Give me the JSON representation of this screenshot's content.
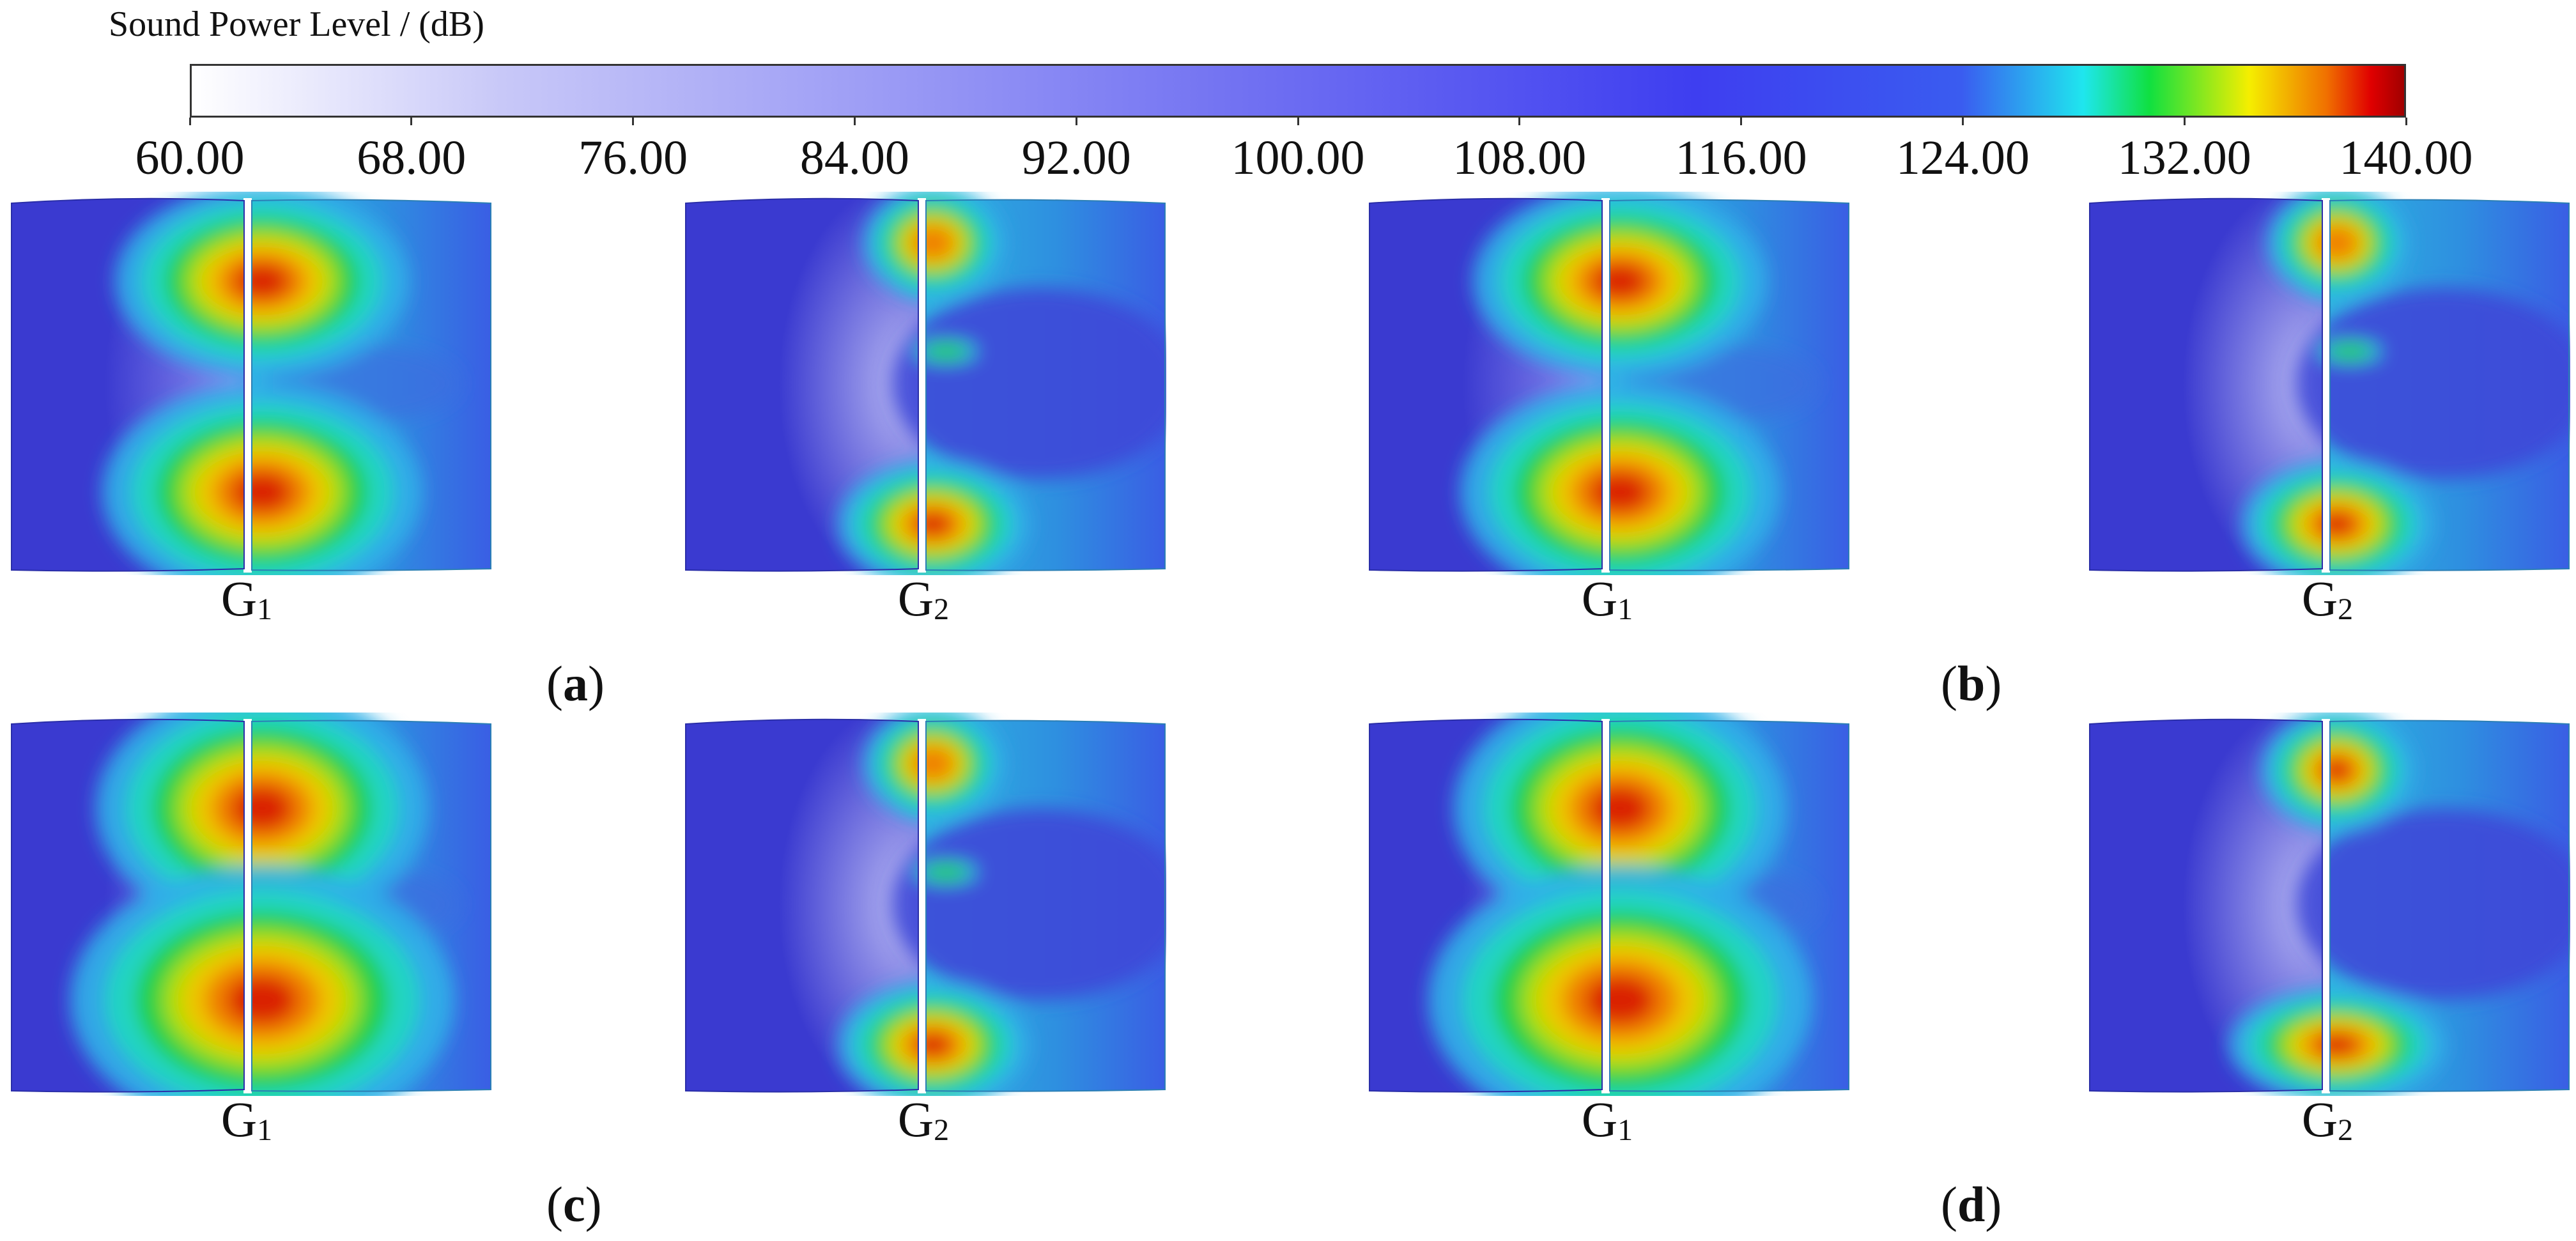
{
  "colorbar": {
    "title": "Sound Power Level / (dB)",
    "ticks": [
      "60.00",
      "68.00",
      "76.00",
      "84.00",
      "92.00",
      "100.00",
      "108.00",
      "116.00",
      "124.00",
      "132.00",
      "140.00"
    ],
    "range": [
      60,
      140
    ],
    "colors": [
      "#ffffff",
      "#c8c8f8",
      "#7070f2",
      "#3e3ef0",
      "#3a5cf0",
      "#1fe6ee",
      "#10e040",
      "#f5ee00",
      "#f07000",
      "#e00000",
      "#a00000"
    ]
  },
  "labels": {
    "g1_main": "G",
    "g1_sub": "1",
    "g2_main": "G",
    "g2_sub": "2"
  },
  "captions": {
    "a_open": "(",
    "a_letter": "a",
    "a_close": ")",
    "b_open": "(",
    "b_letter": "b",
    "b_close": ")",
    "c_open": "(",
    "c_letter": "c",
    "c_close": ")",
    "d_open": "(",
    "d_letter": "d",
    "d_close": ")"
  },
  "theme": {
    "base_field": "#3a3ad0",
    "blade_edge": "#ffffff"
  }
}
